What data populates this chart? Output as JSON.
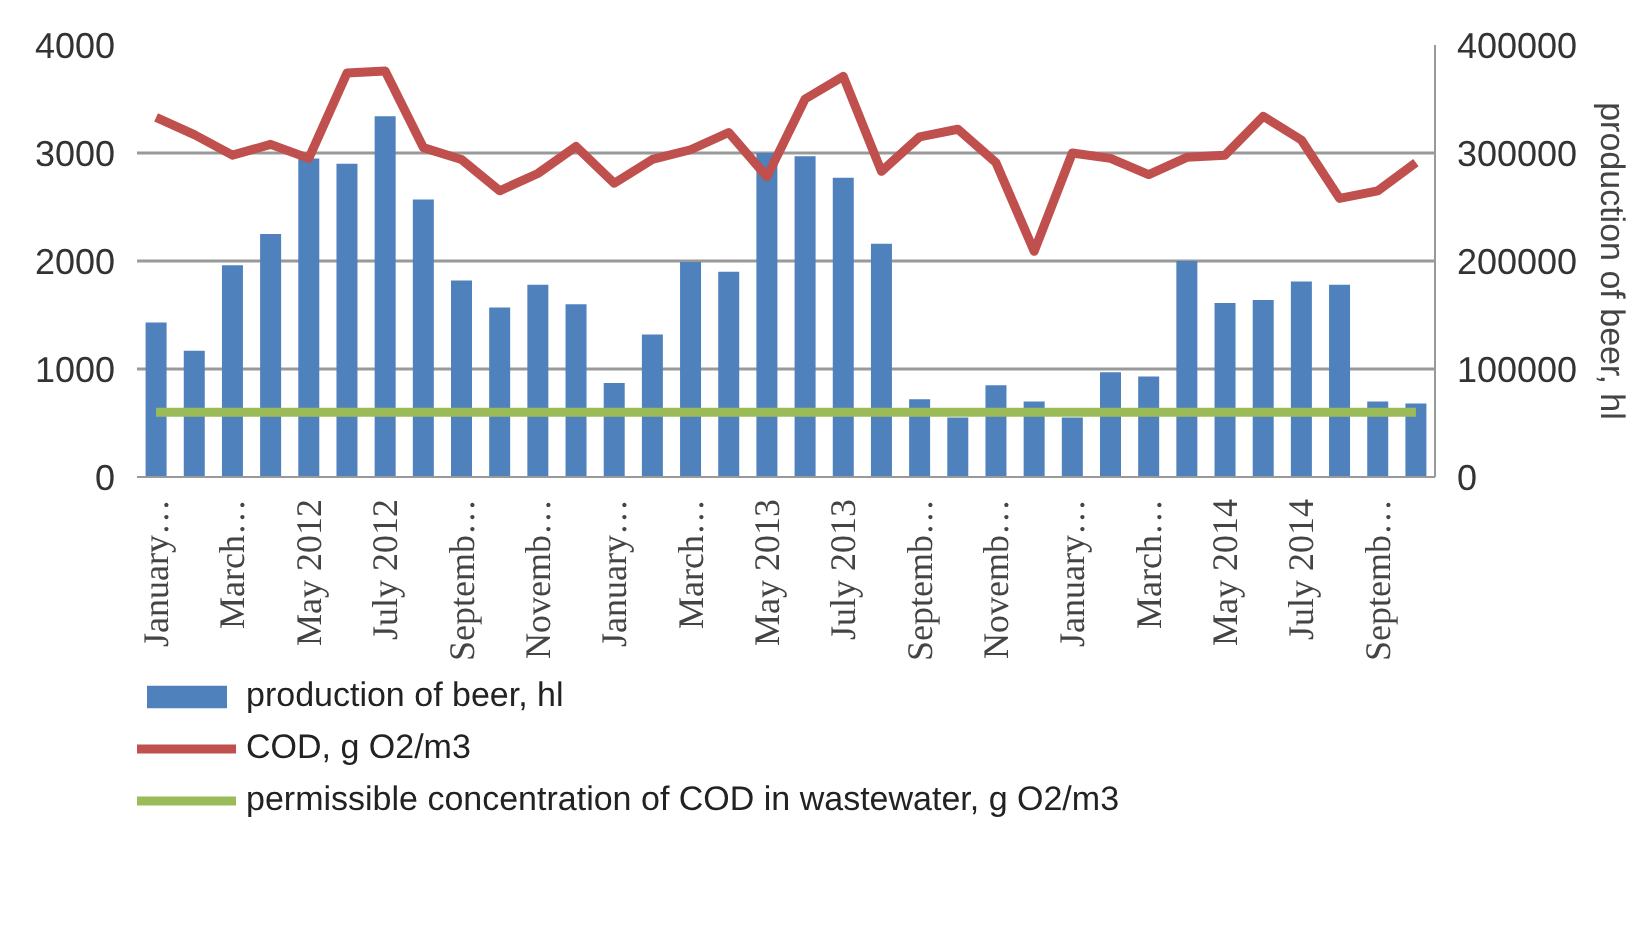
{
  "chart_data": {
    "type": "bar",
    "categories": [
      "January…",
      null,
      "March…",
      null,
      "May 2012",
      null,
      "July 2012",
      null,
      "Septemb…",
      null,
      "Novemb…",
      null,
      "January…",
      null,
      "March…",
      null,
      "May 2013",
      null,
      "July 2013",
      null,
      "Septemb…",
      null,
      "Novemb…",
      null,
      "January…",
      null,
      "March…",
      null,
      "May 2014",
      null,
      "July 2014",
      null,
      "Septemb…",
      null
    ],
    "series": [
      {
        "name": "production of beer, hl",
        "axis": "y2",
        "color": "#4f81bd",
        "values": [
          143000,
          117000,
          196000,
          225000,
          295000,
          290000,
          334000,
          257000,
          182000,
          157000,
          178000,
          160000,
          87000,
          132000,
          199000,
          190000,
          300000,
          297000,
          277000,
          216000,
          72000,
          55000,
          85000,
          70000,
          55000,
          97000,
          93000,
          200000,
          161000,
          164000,
          181000,
          178000,
          70000,
          68000
        ]
      },
      {
        "name": "COD, g O2/m3",
        "type": "line",
        "color": "#c0504d",
        "values": [
          3330,
          3170,
          2980,
          3080,
          2950,
          3740,
          3760,
          3050,
          2940,
          2650,
          2810,
          3060,
          2720,
          2940,
          3030,
          3190,
          2780,
          3500,
          3710,
          2830,
          3150,
          3220,
          2910,
          2090,
          3000,
          2950,
          2800,
          2960,
          2980,
          3340,
          3120,
          2580,
          2650,
          2910
        ]
      },
      {
        "name": "permissible concentration of COD in wastewater, g O2/m3",
        "type": "line",
        "color": "#9bbb59",
        "values": [
          600,
          600,
          600,
          600,
          600,
          600,
          600,
          600,
          600,
          600,
          600,
          600,
          600,
          600,
          600,
          600,
          600,
          600,
          600,
          600,
          600,
          600,
          600,
          600,
          600,
          600,
          600,
          600,
          600,
          600,
          600,
          600,
          600,
          600
        ]
      }
    ],
    "ylim": [
      0,
      4000
    ],
    "yticks": [
      0,
      1000,
      2000,
      3000,
      4000
    ],
    "y2lim": [
      0,
      400000
    ],
    "y2ticks": [
      0,
      100000,
      200000,
      300000,
      400000
    ],
    "y2label": "production of beer, hl",
    "grid": "y",
    "legend": "bottom"
  }
}
